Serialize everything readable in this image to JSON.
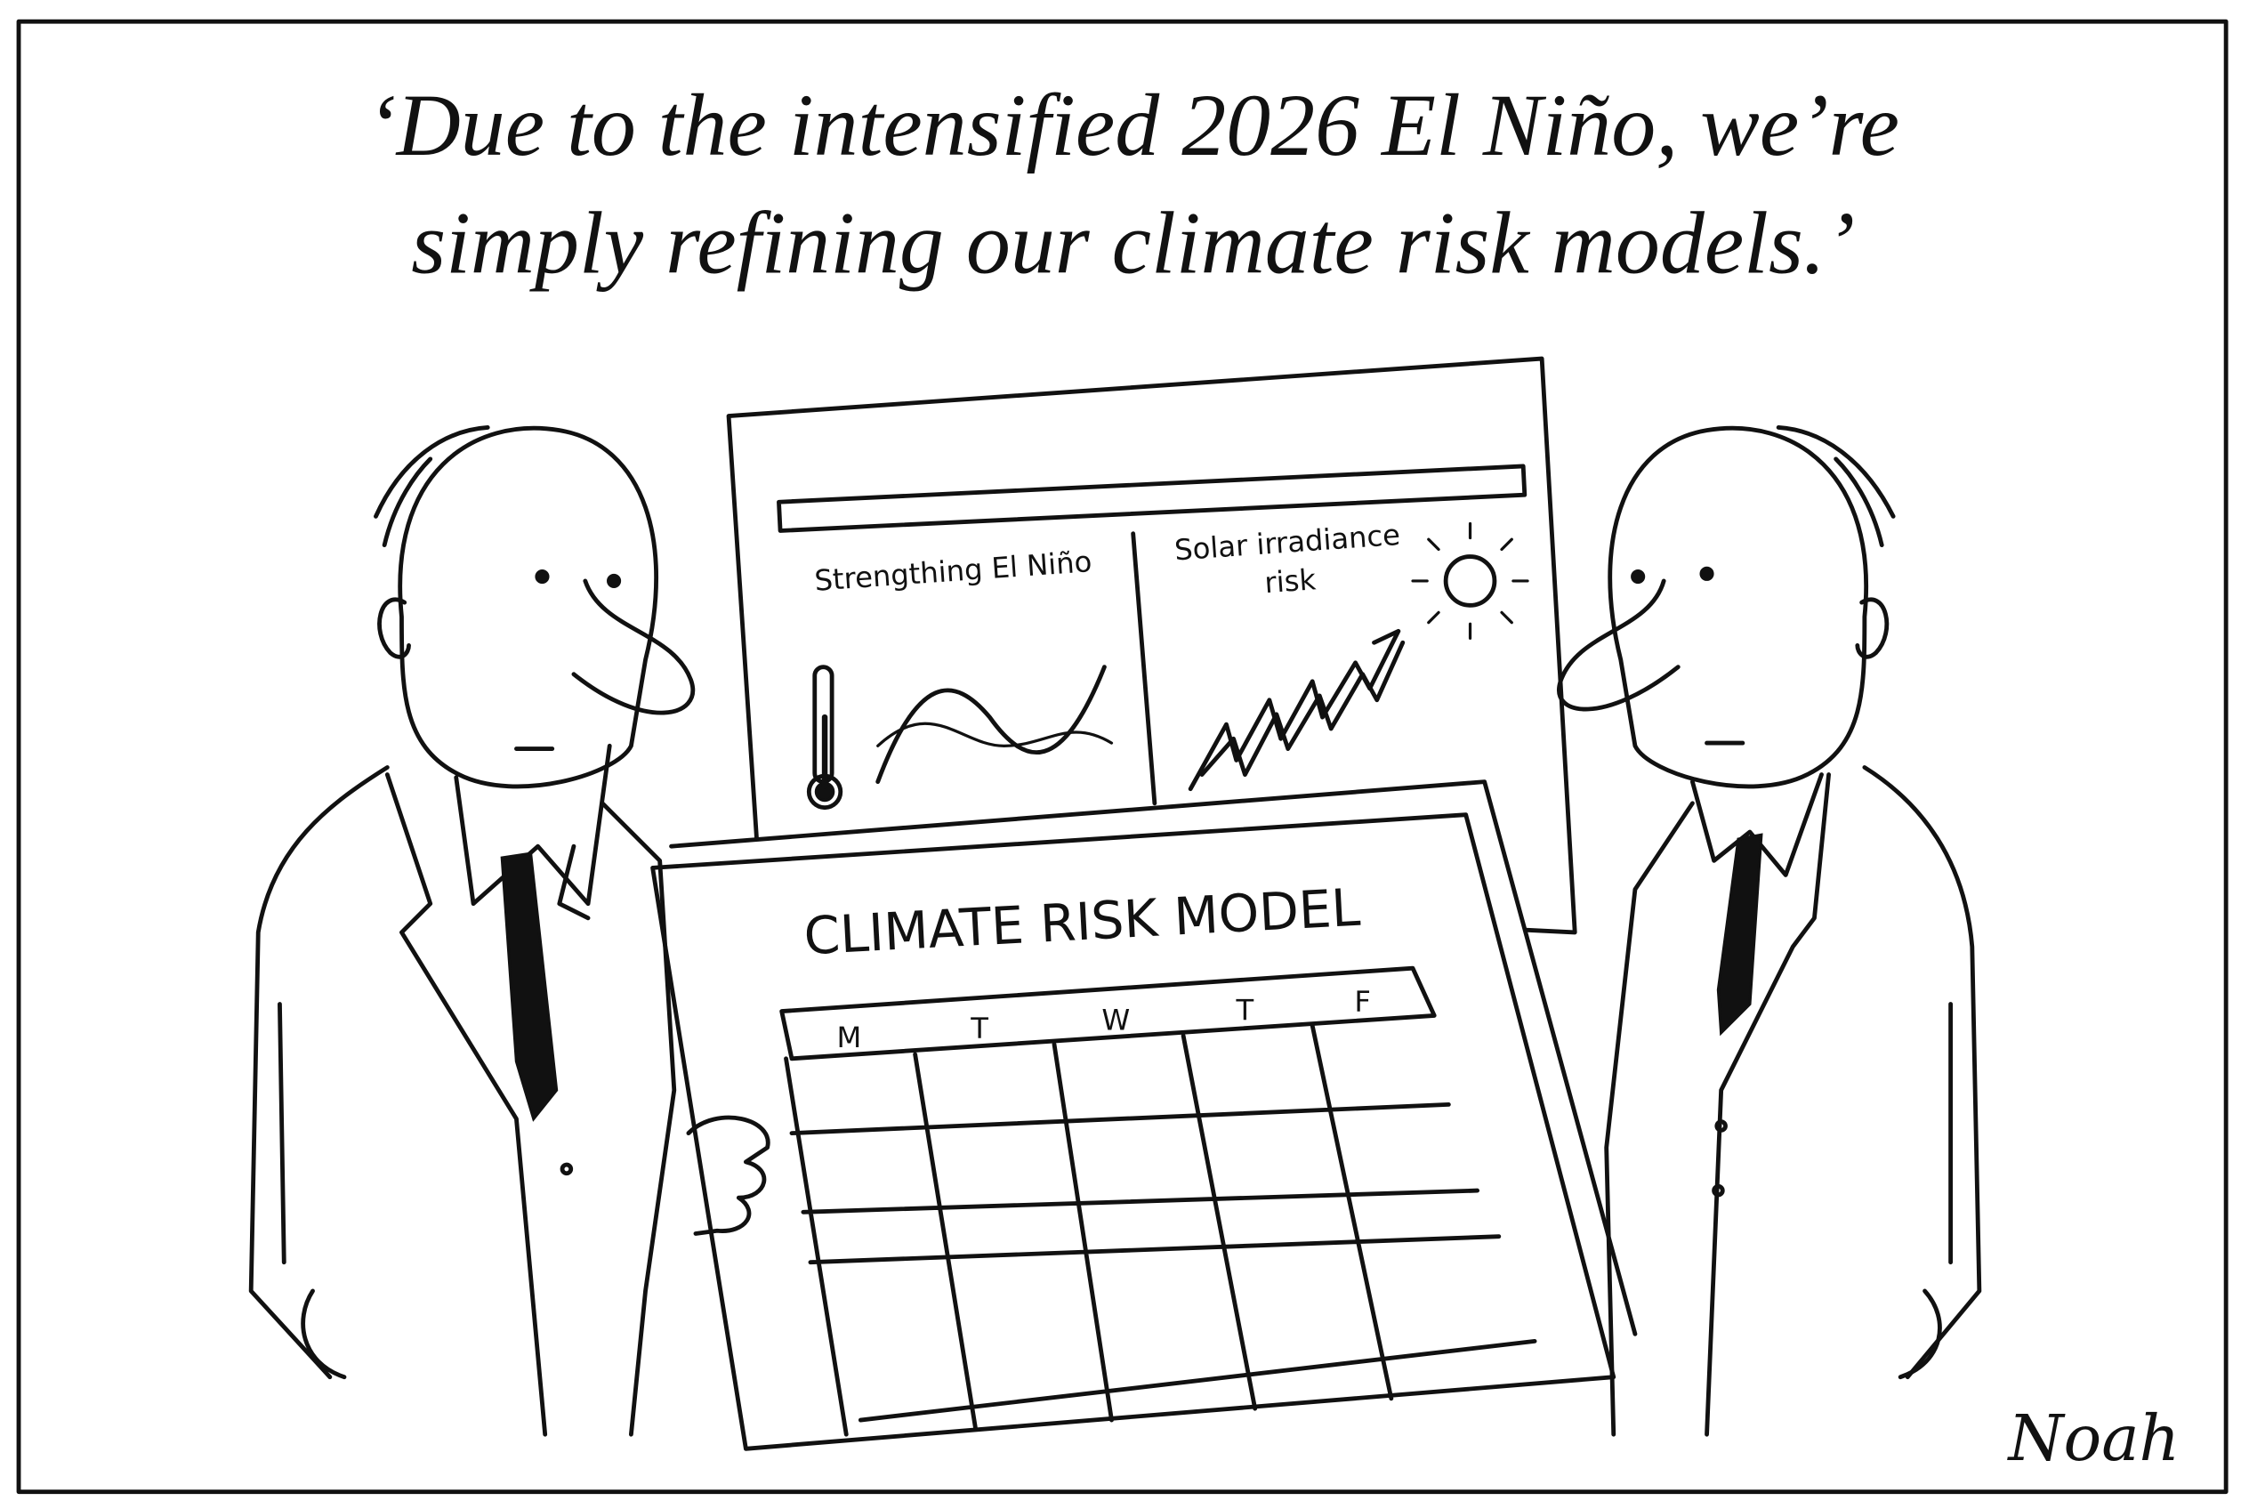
{
  "caption": {
    "lines": [
      "‘Due to the intensified 2026 El Niño, we’re",
      "simply refining our climate risk models.’"
    ]
  },
  "poster": {
    "left_label": "Strengthing El Niño",
    "right_label_lines": [
      "Solar irradiance",
      "risk"
    ]
  },
  "board": {
    "title": "CLIMATE RISK MODEL",
    "days": [
      "M",
      "T",
      "W",
      "T",
      "F"
    ]
  },
  "signature": "Noah"
}
